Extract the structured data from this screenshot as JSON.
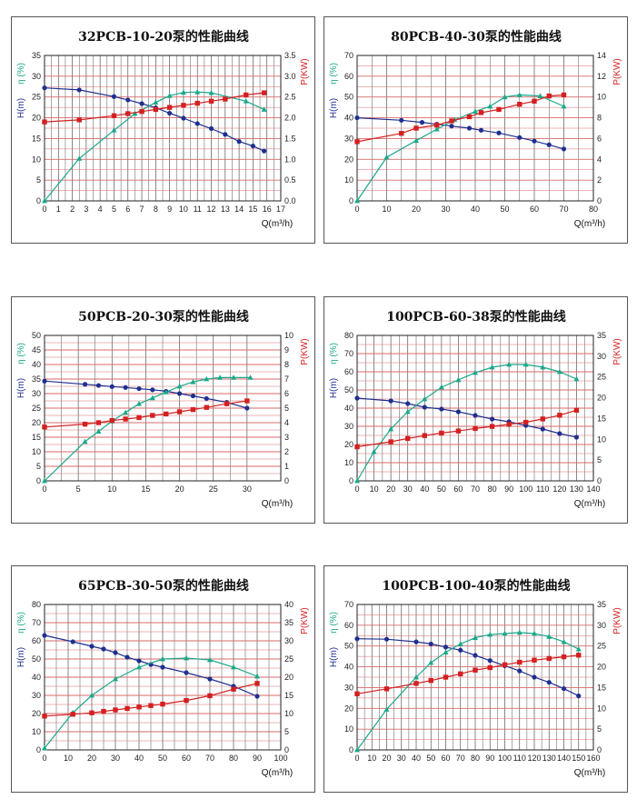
{
  "colors": {
    "head": "#1f2f8f",
    "eff": "#1aa88a",
    "power": "#d42020",
    "grid_v": "#555555",
    "grid_h": "#d86a6a"
  },
  "axis_labels": {
    "head": "H(m)",
    "eff": "η (%)",
    "power": "P(KW)",
    "flow": "Q(m³/h)"
  },
  "chart_data": [
    {
      "type": "line",
      "title": "32PCB-10-20泵的性能曲线",
      "xlabel": "Q(m³/h)",
      "xlim": [
        0,
        17
      ],
      "xticks": [
        0,
        1,
        2,
        3,
        4,
        5,
        6,
        7,
        8,
        9,
        10,
        11,
        12,
        13,
        14,
        15,
        16,
        17
      ],
      "left_lim": [
        0,
        35
      ],
      "left_ticks": [
        0,
        5,
        10,
        15,
        20,
        25,
        30,
        35
      ],
      "right_lim": [
        0,
        3.5
      ],
      "right_ticks": [
        "0.0",
        "0.5",
        "1.0",
        "1.5",
        "2.0",
        "2.5",
        "3.0",
        "3.5"
      ],
      "series": [
        {
          "axis": "left",
          "x": [
            0,
            2.5,
            5,
            6,
            7,
            8,
            9,
            10,
            11,
            12,
            13,
            14,
            15,
            15.8
          ],
          "y": [
            27.2,
            26.7,
            25.1,
            24.3,
            23.4,
            22.4,
            21.1,
            19.9,
            18.6,
            17.4,
            16,
            14.3,
            13.2,
            12
          ]
        },
        {
          "axis": "left",
          "x": [
            0,
            2.5,
            5,
            6.5,
            8,
            9,
            10,
            11,
            12,
            14.5,
            15.8
          ],
          "y": [
            0,
            10.2,
            17,
            21,
            23.7,
            25.3,
            26.1,
            26.2,
            26,
            24,
            22
          ]
        },
        {
          "axis": "right",
          "x": [
            0,
            2.5,
            5,
            6,
            7,
            8,
            9,
            10,
            11,
            12,
            13,
            14.5,
            15.8
          ],
          "y": [
            1.9,
            1.95,
            2.05,
            2.1,
            2.15,
            2.2,
            2.25,
            2.3,
            2.35,
            2.4,
            2.45,
            2.55,
            2.6
          ]
        }
      ]
    },
    {
      "type": "line",
      "title": "80PCB-40-30泵的性能曲线",
      "xlabel": "Q(m³/h)",
      "xlim": [
        0,
        80
      ],
      "xticks": [
        0,
        10,
        20,
        30,
        40,
        50,
        60,
        70,
        80
      ],
      "left_lim": [
        0,
        70
      ],
      "left_ticks": [
        0,
        10,
        20,
        30,
        40,
        50,
        60,
        70
      ],
      "right_lim": [
        0,
        14
      ],
      "right_ticks": [
        "0",
        "2",
        "4",
        "6",
        "8",
        "10",
        "12",
        "14"
      ],
      "series": [
        {
          "axis": "left",
          "x": [
            0,
            15,
            22,
            27,
            32,
            38,
            42,
            48,
            55,
            60,
            65,
            70
          ],
          "y": [
            40,
            38.8,
            37.8,
            36.9,
            36,
            35,
            34,
            32.7,
            30.5,
            28.8,
            27,
            25
          ]
        },
        {
          "axis": "left",
          "x": [
            0,
            10,
            20,
            27,
            33,
            40,
            45,
            50,
            55,
            62,
            70
          ],
          "y": [
            0,
            21,
            29,
            34.5,
            39,
            43,
            45.5,
            50,
            51,
            50.5,
            45.5
          ]
        },
        {
          "axis": "right",
          "x": [
            0,
            15,
            20,
            27,
            32,
            38,
            42,
            48,
            55,
            60,
            65,
            70
          ],
          "y": [
            5.7,
            6.5,
            7,
            7.3,
            7.7,
            8.1,
            8.5,
            8.8,
            9.3,
            9.6,
            10.1,
            10.2
          ]
        }
      ]
    },
    {
      "type": "line",
      "title": "50PCB-20-30泵的性能曲线",
      "xlabel": "Q(m³/h)",
      "xlim": [
        0,
        35
      ],
      "xticks": [
        0,
        5,
        10,
        15,
        20,
        25,
        30
      ],
      "left_lim": [
        0,
        50
      ],
      "left_ticks": [
        0,
        5,
        10,
        15,
        20,
        25,
        30,
        35,
        40,
        45,
        50
      ],
      "right_lim": [
        0,
        10
      ],
      "right_ticks": [
        "0",
        "1",
        "2",
        "3",
        "4",
        "5",
        "6",
        "7",
        "8",
        "9",
        "10"
      ],
      "series": [
        {
          "axis": "left",
          "x": [
            0,
            6,
            8,
            10,
            12,
            14,
            16,
            18,
            20,
            22,
            24,
            27,
            30
          ],
          "y": [
            34.3,
            33.2,
            32.8,
            32.4,
            32.1,
            31.7,
            31.3,
            30.8,
            30,
            29.2,
            28.3,
            27,
            25
          ]
        },
        {
          "axis": "left",
          "x": [
            0,
            6,
            8,
            10,
            12,
            14,
            16,
            18,
            20,
            22,
            24,
            26,
            28,
            30.5
          ],
          "y": [
            0,
            13.5,
            17,
            20.5,
            23.5,
            26.5,
            28.5,
            30.5,
            32.5,
            34,
            35,
            35.5,
            35.5,
            35.5
          ]
        },
        {
          "axis": "right",
          "x": [
            0,
            6,
            8,
            10,
            12,
            14,
            16,
            18,
            20,
            22,
            24,
            27,
            30
          ],
          "y": [
            3.7,
            3.9,
            4,
            4.15,
            4.25,
            4.35,
            4.5,
            4.6,
            4.75,
            4.9,
            5.05,
            5.3,
            5.5
          ]
        }
      ]
    },
    {
      "type": "line",
      "title": "100PCB-60-38泵的性能曲线",
      "xlabel": "Q(m³/h)",
      "xlim": [
        0,
        140
      ],
      "xticks": [
        0,
        10,
        20,
        30,
        40,
        50,
        60,
        70,
        80,
        90,
        100,
        110,
        120,
        130,
        140
      ],
      "left_lim": [
        0,
        80
      ],
      "left_ticks": [
        0,
        10,
        20,
        30,
        40,
        50,
        60,
        70,
        80
      ],
      "right_lim": [
        0,
        35
      ],
      "right_ticks": [
        "0",
        "5",
        "10",
        "15",
        "20",
        "25",
        "30",
        "35"
      ],
      "series": [
        {
          "axis": "left",
          "x": [
            0,
            20,
            30,
            40,
            50,
            60,
            70,
            80,
            90,
            100,
            110,
            120,
            130
          ],
          "y": [
            45.5,
            44,
            42.5,
            40.5,
            39.5,
            38,
            36,
            34,
            32.5,
            30.5,
            28.5,
            26,
            24
          ]
        },
        {
          "axis": "left",
          "x": [
            0,
            10,
            20,
            30,
            40,
            50,
            60,
            70,
            80,
            90,
            100,
            110,
            120,
            130
          ],
          "y": [
            0,
            16,
            28.5,
            38,
            45,
            51.5,
            55.5,
            59.5,
            62.5,
            64,
            64,
            62.5,
            60,
            56
          ]
        },
        {
          "axis": "right",
          "x": [
            0,
            20,
            30,
            40,
            50,
            60,
            70,
            80,
            90,
            100,
            110,
            120,
            130
          ],
          "y": [
            8.2,
            9.4,
            10.2,
            10.9,
            11.5,
            12,
            12.6,
            13.1,
            13.6,
            14.1,
            14.9,
            15.8,
            17
          ]
        }
      ]
    },
    {
      "type": "line",
      "title": "65PCB-30-50泵的性能曲线",
      "xlabel": "Q(m³/h)",
      "xlim": [
        0,
        100
      ],
      "xticks": [
        0,
        10,
        20,
        30,
        40,
        50,
        60,
        70,
        80,
        90,
        100
      ],
      "left_lim": [
        0,
        80
      ],
      "left_ticks": [
        0,
        10,
        20,
        30,
        40,
        50,
        60,
        70,
        80
      ],
      "right_lim": [
        0,
        40
      ],
      "right_ticks": [
        "0",
        "5",
        "10",
        "15",
        "20",
        "25",
        "30",
        "35",
        "40"
      ],
      "series": [
        {
          "axis": "left",
          "x": [
            0,
            12,
            20,
            25,
            30,
            35,
            40,
            45,
            50,
            60,
            70,
            80,
            90
          ],
          "y": [
            63,
            59.5,
            57,
            55.5,
            53.5,
            51,
            49,
            47,
            45.5,
            42.5,
            39,
            35,
            29.5
          ]
        },
        {
          "axis": "left",
          "x": [
            0,
            12,
            20,
            30,
            40,
            50,
            60,
            70,
            80,
            90
          ],
          "y": [
            1,
            20.5,
            30,
            39,
            45.5,
            50,
            50.5,
            49.5,
            45.5,
            40.5
          ]
        },
        {
          "axis": "right",
          "x": [
            0,
            12,
            20,
            25,
            30,
            35,
            40,
            45,
            50,
            60,
            70,
            80,
            90
          ],
          "y": [
            9.3,
            9.8,
            10.2,
            10.6,
            11,
            11.4,
            11.8,
            12.2,
            12.6,
            13.6,
            14.9,
            16.7,
            18.3
          ]
        }
      ]
    },
    {
      "type": "line",
      "title": "100PCB-100-40泵的性能曲线",
      "xlabel": "Q(m³/h)",
      "xlim": [
        0,
        160
      ],
      "xticks": [
        0,
        10,
        20,
        30,
        40,
        50,
        60,
        70,
        80,
        90,
        100,
        110,
        120,
        130,
        140,
        150,
        160
      ],
      "left_lim": [
        0,
        70
      ],
      "left_ticks": [
        0,
        10,
        20,
        30,
        40,
        50,
        60,
        70
      ],
      "right_lim": [
        0,
        35
      ],
      "right_ticks": [
        "0",
        "5",
        "10",
        "15",
        "20",
        "25",
        "30",
        "35"
      ],
      "series": [
        {
          "axis": "left",
          "x": [
            0,
            20,
            40,
            50,
            60,
            70,
            80,
            90,
            100,
            110,
            120,
            130,
            140,
            150
          ],
          "y": [
            53.5,
            53.3,
            52,
            51,
            49.5,
            48,
            45.5,
            43,
            40.5,
            38,
            35,
            32.5,
            29.5,
            26
          ]
        },
        {
          "axis": "left",
          "x": [
            0,
            20,
            40,
            50,
            60,
            70,
            80,
            90,
            100,
            110,
            120,
            130,
            140,
            150
          ],
          "y": [
            0,
            19.5,
            35,
            42,
            47,
            51,
            54,
            55.5,
            56,
            56.5,
            56,
            54.5,
            52,
            48.5
          ]
        },
        {
          "axis": "right",
          "x": [
            0,
            20,
            40,
            50,
            60,
            70,
            80,
            90,
            100,
            110,
            120,
            130,
            140,
            150
          ],
          "y": [
            13.5,
            14.7,
            16,
            16.7,
            17.5,
            18.3,
            19.2,
            19.8,
            20.5,
            21.1,
            21.6,
            22,
            22.4,
            22.8
          ]
        }
      ]
    }
  ]
}
